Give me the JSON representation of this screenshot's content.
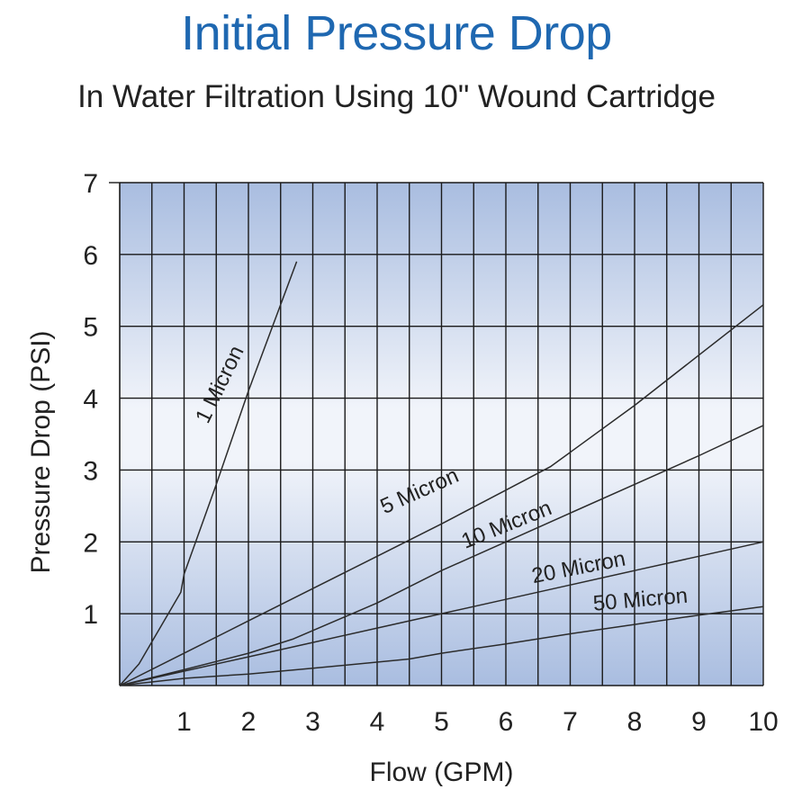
{
  "chart_data": {
    "type": "line",
    "title": "Initial Pressure Drop",
    "subtitle": "In Water Filtration Using 10\" Wound Cartridge",
    "xlabel": "Flow (GPM)",
    "ylabel": "Pressure Drop (PSI)",
    "xlim": [
      0,
      10
    ],
    "ylim": [
      0,
      7
    ],
    "x_ticks": [
      1,
      2,
      3,
      4,
      5,
      6,
      7,
      8,
      9,
      10
    ],
    "y_ticks": [
      1,
      2,
      3,
      4,
      5,
      6,
      7
    ],
    "grid": true,
    "background": {
      "edge_color": "#a9bde0",
      "center_color": "#f1f4fa"
    },
    "line_color": "#2b2b2b",
    "series": [
      {
        "name": "1 Micron",
        "x": [
          0,
          0.3,
          0.95,
          1.0,
          1.5,
          2.0,
          2.75
        ],
        "y": [
          0,
          0.3,
          1.3,
          1.55,
          2.8,
          4.1,
          5.9
        ]
      },
      {
        "name": "5 Micron",
        "x": [
          0,
          1.0,
          2.0,
          3.0,
          4.0,
          5.0,
          6.0,
          6.7,
          8.0,
          9.0,
          10.0
        ],
        "y": [
          0,
          0.45,
          0.9,
          1.35,
          1.8,
          2.25,
          2.72,
          3.05,
          3.9,
          4.6,
          5.3
        ]
      },
      {
        "name": "10 Micron",
        "x": [
          0,
          1.0,
          2.0,
          2.7,
          4.0,
          5.0,
          6.0,
          7.0,
          8.0,
          9.0,
          10.0
        ],
        "y": [
          0,
          0.22,
          0.45,
          0.65,
          1.15,
          1.6,
          2.0,
          2.4,
          2.8,
          3.2,
          3.62
        ]
      },
      {
        "name": "20 Micron",
        "x": [
          0,
          1.0,
          2.0,
          3.0,
          4.0,
          5.0,
          6.0,
          7.0,
          8.0,
          9.0,
          10.0
        ],
        "y": [
          0,
          0.2,
          0.4,
          0.6,
          0.8,
          1.0,
          1.2,
          1.4,
          1.6,
          1.8,
          2.0
        ]
      },
      {
        "name": "50 Micron",
        "x": [
          0,
          1.0,
          2.0,
          3.0,
          4.5,
          5.0,
          6.0,
          7.0,
          8.0,
          9.0,
          10.0
        ],
        "y": [
          0,
          0.1,
          0.16,
          0.24,
          0.37,
          0.45,
          0.58,
          0.72,
          0.85,
          0.98,
          1.1
        ]
      }
    ]
  }
}
